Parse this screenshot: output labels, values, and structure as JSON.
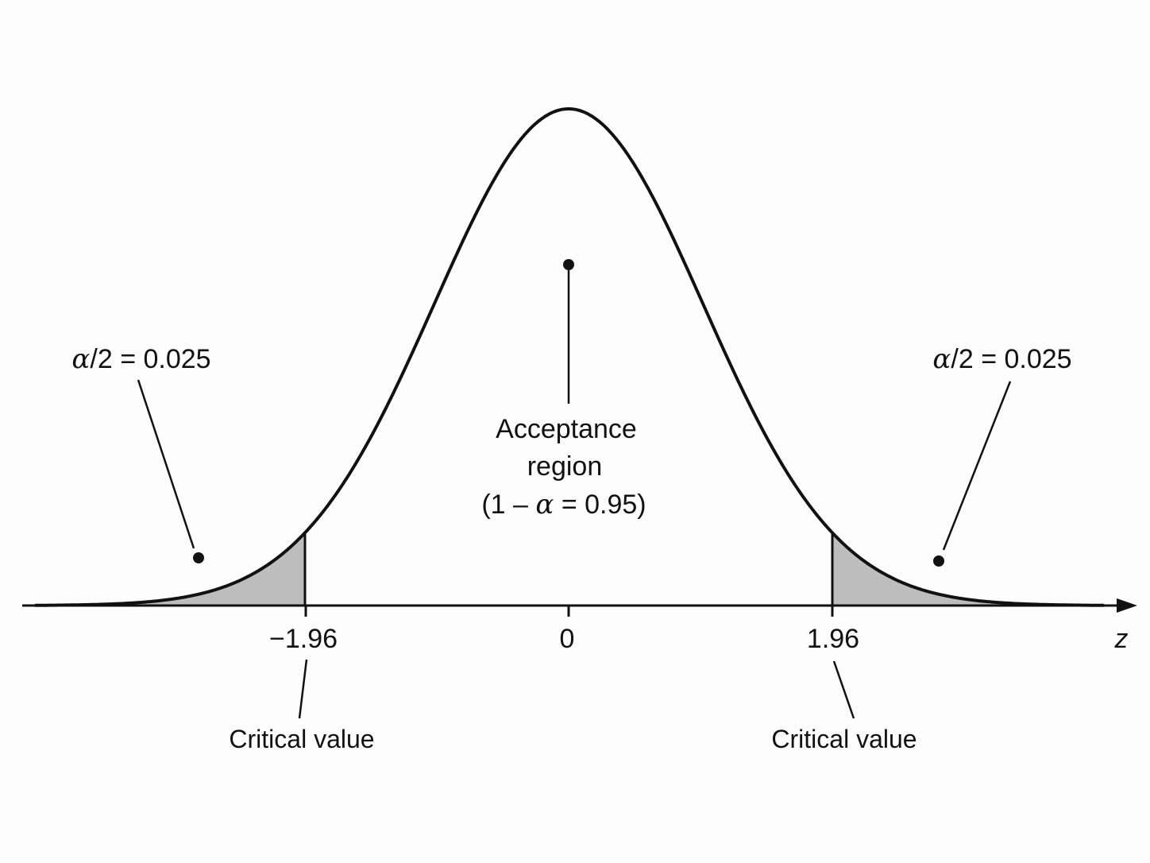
{
  "distribution": "standard normal",
  "axis": {
    "variable": "z",
    "ticks": [
      {
        "value": -1.96,
        "label": "−1.96"
      },
      {
        "value": 0,
        "label": "0"
      },
      {
        "value": 1.96,
        "label": "1.96"
      }
    ]
  },
  "critical_values": [
    -1.96,
    1.96
  ],
  "regions": {
    "left_tail": {
      "label": "α/2 = 0.025",
      "prefix_symbol": "α",
      "rest": "/2 = 0.025",
      "shaded": true
    },
    "acceptance": {
      "line1": "Acceptance",
      "line2": "region",
      "line3_prefix": "(1 – ",
      "line3_symbol": "α",
      "line3_suffix": " = 0.95)",
      "shaded": false
    },
    "right_tail": {
      "label": "α/2 = 0.025",
      "prefix_symbol": "α",
      "rest": "/2 = 0.025",
      "shaded": true
    }
  },
  "critical_value_labels": {
    "left": "Critical value",
    "right": "Critical value"
  },
  "colors": {
    "curve": "#111111",
    "tail_fill": "#bdbdbd",
    "background": "#fdfdfd"
  }
}
